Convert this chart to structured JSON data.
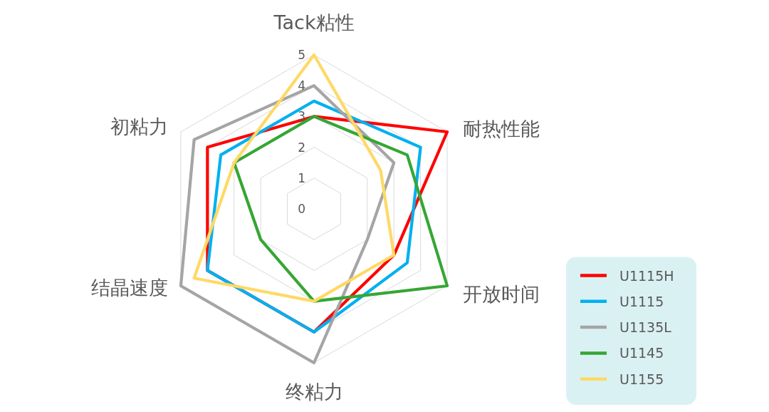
{
  "chart_data": {
    "type": "radar",
    "categories": [
      "Tack粘性",
      "耐热性能",
      "开放时间",
      "终粘力",
      "结晶速度",
      "初粘力"
    ],
    "series": [
      {
        "name": "U1115H",
        "color": "#ff0000",
        "values": [
          3,
          5,
          3,
          4,
          4,
          4
        ]
      },
      {
        "name": "U1115",
        "color": "#00b0f0",
        "values": [
          3.5,
          4,
          3.5,
          4,
          4,
          3.5
        ]
      },
      {
        "name": "U1135L",
        "color": "#a5a5a5",
        "values": [
          4,
          3,
          2,
          5,
          5,
          4.5
        ]
      },
      {
        "name": "U1145",
        "color": "#36a635",
        "values": [
          3,
          3.5,
          5,
          3,
          2,
          3
        ]
      },
      {
        "name": "U1155",
        "color": "#ffd966",
        "values": [
          5,
          2.5,
          3,
          3,
          4.5,
          3
        ]
      }
    ],
    "ylim": [
      0,
      5
    ],
    "yticks": [
      0,
      1,
      2,
      3,
      4,
      5
    ],
    "grid": true,
    "legend": "bottom right",
    "line_style": "solid"
  }
}
